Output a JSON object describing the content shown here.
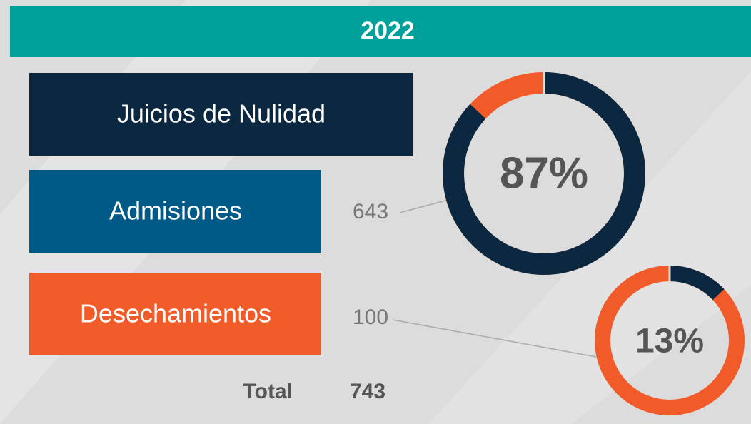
{
  "header": {
    "title": "2022"
  },
  "rows": [
    {
      "label": "Juicios de Nulidad"
    },
    {
      "label": "Admisiones",
      "value": 643
    },
    {
      "label": "Desechamientos",
      "value": 100
    }
  ],
  "total": {
    "label": "Total",
    "value": 743
  },
  "donuts": [
    {
      "value": 87,
      "label": "87%"
    },
    {
      "value": 13,
      "label": "13%"
    }
  ],
  "colors": {
    "header": "#00a19a",
    "rows": [
      "#0b2840",
      "#005a87",
      "#f15a29"
    ],
    "arc": "#0b2840",
    "rest": "#f15a29"
  }
}
